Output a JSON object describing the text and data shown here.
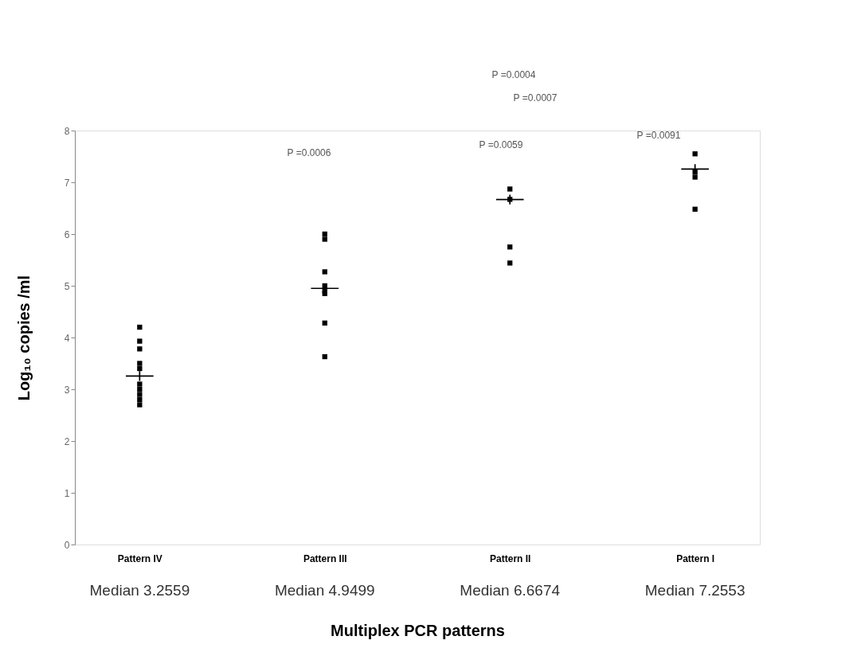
{
  "chart_data": {
    "type": "scatter",
    "xlabel": "Multiplex PCR patterns",
    "ylabel": "Log₁₀ copies /ml",
    "categories": [
      "Pattern IV",
      "Pattern III",
      "Pattern II",
      "Pattern I"
    ],
    "series": [
      {
        "type": "scatter",
        "marker": "square",
        "color": "#000000",
        "x": [
          "Pattern IV",
          "Pattern IV",
          "Pattern IV",
          "Pattern IV",
          "Pattern IV",
          "Pattern IV",
          "Pattern IV",
          "Pattern IV",
          "Pattern IV",
          "Pattern IV",
          "Pattern III",
          "Pattern III",
          "Pattern III",
          "Pattern III",
          "Pattern III",
          "Pattern III",
          "Pattern III",
          "Pattern III",
          "Pattern II",
          "Pattern II",
          "Pattern II",
          "Pattern II",
          "Pattern I",
          "Pattern I",
          "Pattern I",
          "Pattern I"
        ],
        "values": [
          4.2,
          3.93,
          3.78,
          3.5,
          3.4,
          3.1,
          3.0,
          2.9,
          2.8,
          2.7,
          6.0,
          5.9,
          5.27,
          5.0,
          4.9,
          4.85,
          4.28,
          3.63,
          6.87,
          6.67,
          5.75,
          5.44,
          7.55,
          7.2,
          7.1,
          6.48
        ]
      },
      {
        "type": "scatter",
        "marker": "cross",
        "color": "#000000",
        "x": [
          "Pattern IV",
          "Pattern III",
          "Pattern II",
          "Pattern I"
        ],
        "values": [
          3.2559,
          4.9499,
          6.6674,
          7.2553
        ]
      }
    ],
    "ylim": [
      0,
      8
    ],
    "yticks": [
      0,
      1,
      2,
      3,
      4,
      5,
      6,
      7,
      8
    ],
    "grid": false,
    "annotations": [
      "P =0.0004",
      "P =0.0007",
      "P =0.0006",
      "P =0.0059",
      "P =0.0091",
      "Median 3.2559",
      "Median 4.9499",
      "Median 6.6674",
      "Median 7.2553"
    ]
  }
}
